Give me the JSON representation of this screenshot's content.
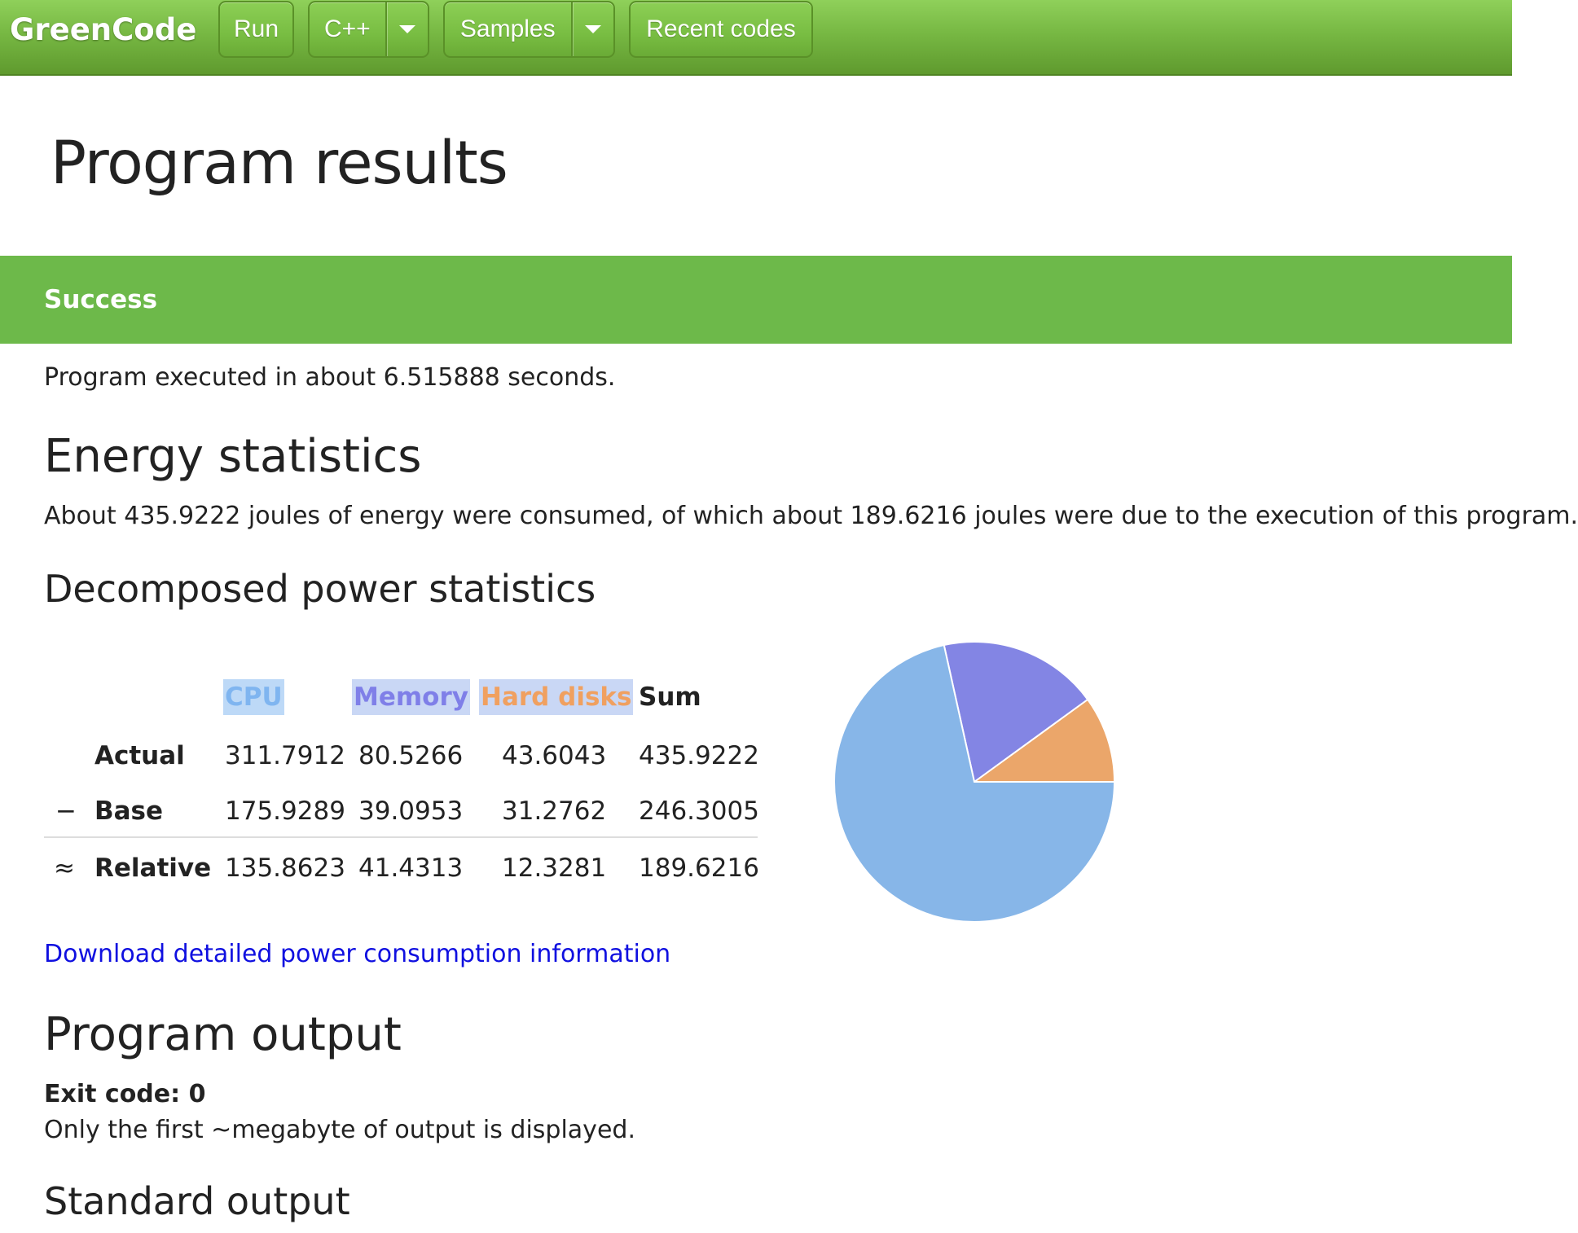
{
  "navbar": {
    "brand": "GreenCode",
    "run_label": "Run",
    "language_label": "C++",
    "samples_label": "Samples",
    "recent_label": "Recent codes"
  },
  "page_title": "Program results",
  "status": {
    "label": "Success",
    "execution_text": "Program executed in about 6.515888 seconds."
  },
  "energy": {
    "heading": "Energy statistics",
    "summary": "About 435.9222 joules of energy were consumed, of which about 189.6216 joules were due to the execution of this program."
  },
  "power": {
    "heading": "Decomposed power statistics",
    "columns": [
      {
        "label": "CPU",
        "color": "#7fb5f0",
        "bg": "#bdd9f7"
      },
      {
        "label": "Memory",
        "color": "#7f7fe8",
        "bg": "#c9d7f5"
      },
      {
        "label": "Hard disks",
        "color": "#f0a060",
        "bg": "#c9d7f5"
      },
      {
        "label": "Sum",
        "color": "#222222",
        "bg": ""
      }
    ],
    "rows": [
      {
        "symbol": "",
        "label": "Actual",
        "values": [
          "311.7912",
          "80.5266",
          "43.6043",
          "435.9222"
        ]
      },
      {
        "symbol": "−",
        "label": "Base",
        "values": [
          "175.9289",
          "39.0953",
          "31.2762",
          "246.3005"
        ]
      },
      {
        "symbol": "≈",
        "label": "Relative",
        "values": [
          "135.8623",
          "41.4313",
          "12.3281",
          "189.6216"
        ]
      }
    ],
    "download_link": "Download detailed power consumption information"
  },
  "chart_data": {
    "type": "pie",
    "categories": [
      "CPU",
      "Memory",
      "Hard disks"
    ],
    "values": [
      311.7912,
      80.5266,
      43.6043
    ],
    "colors": [
      "#87b6e8",
      "#8385e4",
      "#eba66a"
    ],
    "stroke": "#ffffff"
  },
  "output": {
    "heading": "Program output",
    "exit_code": "Exit code: 0",
    "note": "Only the first ~megabyte of output is displayed.",
    "stdout_heading": "Standard output"
  }
}
